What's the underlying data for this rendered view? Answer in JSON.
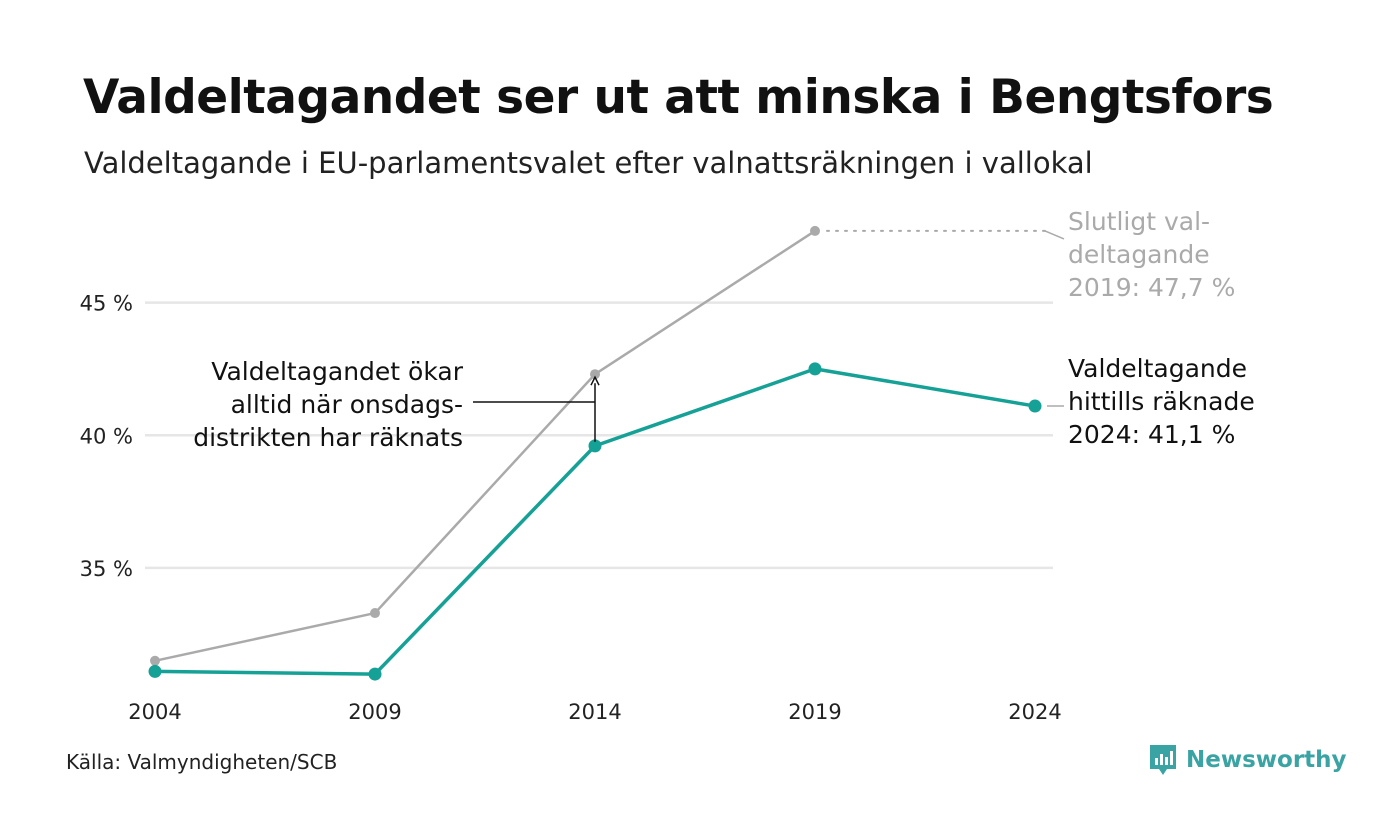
{
  "title": "Valdeltagandet ser ut att minska i Bengtsfors",
  "subtitle": "Valdeltagande i EU-parlamentsvalet efter valnattsräkningen i vallokal",
  "source": "Källa: Valmyndigheten/SCB",
  "brand": {
    "name": "Newsworthy",
    "icon": "newsworthy-logo-icon",
    "color": "#3aa3a3"
  },
  "annotations": {
    "final_2019": [
      "Slutligt val-",
      "deltagande",
      "2019: 47,7 %"
    ],
    "current_2024": [
      "Valdeltagande",
      "hittills räknade",
      "2024: 41,1 %"
    ],
    "note": [
      "Valdeltagandet ökar",
      "alltid när onsdags-",
      "distrikten har räknats"
    ]
  },
  "chart_data": {
    "type": "line",
    "x": [
      2004,
      2009,
      2014,
      2019,
      2024
    ],
    "x_ticks": [
      "2004",
      "2009",
      "2014",
      "2019",
      "2024"
    ],
    "y_ticks": [
      35,
      40,
      45
    ],
    "y_tick_labels": [
      "35 %",
      "40 %",
      "45 %"
    ],
    "ylim": [
      30.4,
      48.3
    ],
    "grid": true,
    "series": [
      {
        "key": "final",
        "color": "#aaaaaa",
        "values": [
          31.5,
          33.3,
          42.3,
          47.7,
          null
        ]
      },
      {
        "key": "valnatt",
        "color": "#16a196",
        "values": [
          31.1,
          31.0,
          39.6,
          42.5,
          41.1
        ]
      }
    ]
  }
}
